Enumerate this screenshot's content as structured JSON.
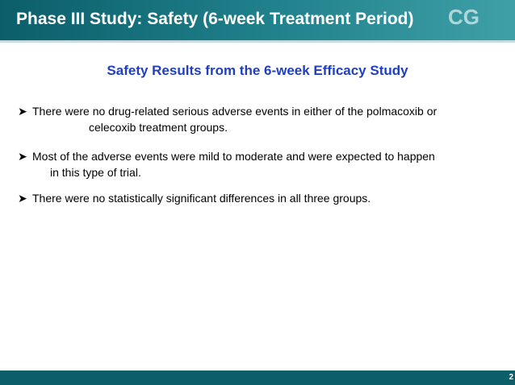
{
  "header": {
    "title": "Phase III Study: Safety (6-week Treatment Period)",
    "logo": "CG"
  },
  "subtitle": "Safety Results from the 6-week Efficacy Study",
  "bullets": [
    {
      "line1": "There were no drug-related serious adverse events in either of the polmacoxib or",
      "line2": "celecoxib treatment groups."
    },
    {
      "line1": "Most of the adverse events were mild to moderate and were expected to happen",
      "line2": "in this type of trial."
    },
    {
      "line1": "There were no statistically significant differences in all three groups."
    }
  ],
  "footer": {
    "page": "2"
  }
}
